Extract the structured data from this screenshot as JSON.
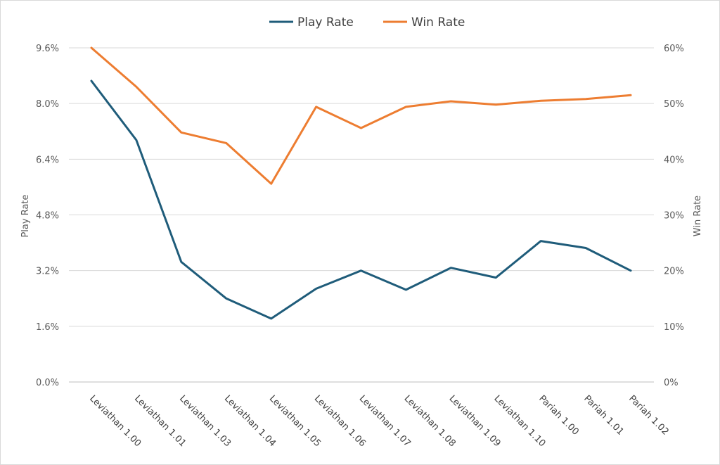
{
  "chart_data": {
    "type": "line",
    "categories": [
      "Leviathan 1.00",
      "Leviathan 1.01",
      "Leviathan 1.03",
      "Leviathan 1.04",
      "Leviathan 1.05",
      "Leviathan 1.06",
      "Leviathan 1.07",
      "Leviathan 1.08",
      "Leviathan 1.09",
      "Leviathan 1.10",
      "Pariah 1.00",
      "Pariah 1.01",
      "Pariah 1.02"
    ],
    "series": [
      {
        "name": "Play Rate",
        "axis": "left",
        "color": "#1f5c7a",
        "values": [
          8.65,
          6.95,
          3.45,
          2.4,
          1.82,
          2.68,
          3.2,
          2.65,
          3.28,
          3.0,
          4.05,
          3.85,
          3.2
        ]
      },
      {
        "name": "Win Rate",
        "axis": "right",
        "color": "#ed7d31",
        "values": [
          60.0,
          53.0,
          44.8,
          42.9,
          35.6,
          49.4,
          45.6,
          49.4,
          50.4,
          49.8,
          50.5,
          50.8,
          51.5
        ]
      }
    ],
    "ylabel": "Play Rate",
    "y2label": "Win Rate",
    "ylim": [
      0,
      9.6
    ],
    "y2lim": [
      0,
      60
    ],
    "yticks": [
      "0.0%",
      "1.6%",
      "3.2%",
      "4.8%",
      "6.4%",
      "8.0%",
      "9.6%"
    ],
    "y2ticks": [
      "0%",
      "10%",
      "20%",
      "30%",
      "40%",
      "50%",
      "60%"
    ],
    "grid": true,
    "legend": "top"
  }
}
